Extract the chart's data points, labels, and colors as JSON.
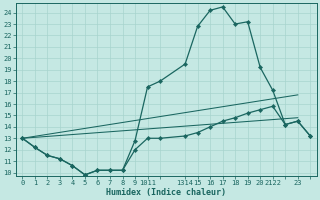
{
  "bg_color": "#c5e8e3",
  "grid_color": "#a8d4ce",
  "line_color": "#1a6660",
  "xlabel": "Humidex (Indice chaleur)",
  "ylim": [
    9.7,
    24.8
  ],
  "xlim": [
    -0.5,
    23.5
  ],
  "yticks": [
    10,
    11,
    12,
    13,
    14,
    15,
    16,
    17,
    18,
    19,
    20,
    21,
    22,
    23,
    24
  ],
  "curve1_x": [
    0,
    1,
    2,
    3,
    4,
    5,
    6,
    7,
    8,
    9,
    10,
    11,
    13,
    14,
    15,
    16,
    17,
    18,
    19,
    20,
    21,
    22,
    23
  ],
  "curve1_y": [
    13.0,
    12.2,
    11.5,
    11.2,
    10.6,
    9.8,
    10.2,
    10.2,
    10.2,
    12.8,
    17.5,
    18.0,
    19.5,
    22.8,
    24.2,
    24.5,
    23.0,
    23.2,
    19.2,
    17.2,
    14.2,
    14.5,
    13.2
  ],
  "curve2_x": [
    0,
    1,
    2,
    3,
    4,
    5,
    6,
    7,
    8,
    9,
    10,
    11,
    13,
    14,
    15,
    16,
    17,
    18,
    19,
    20,
    21,
    22,
    23
  ],
  "curve2_y": [
    13.0,
    12.2,
    11.5,
    11.2,
    10.6,
    9.8,
    10.2,
    10.2,
    10.2,
    12.0,
    13.0,
    13.0,
    13.2,
    13.5,
    14.0,
    14.5,
    14.8,
    15.2,
    15.5,
    15.8,
    14.2,
    14.5,
    13.2
  ],
  "line3_x": [
    0,
    22
  ],
  "line3_y": [
    13.0,
    16.8
  ],
  "line4_x": [
    0,
    22
  ],
  "line4_y": [
    13.0,
    14.8
  ],
  "xt_pos": [
    0,
    1,
    2,
    3,
    4,
    5,
    6,
    7,
    8,
    9,
    10,
    11,
    13,
    14,
    15,
    16,
    17,
    18,
    19,
    20,
    21,
    22,
    23
  ],
  "xt_lab": [
    "0",
    "1",
    "2",
    "3",
    "4",
    "5",
    "6",
    "7",
    "8",
    "9",
    "1011",
    "",
    "1314",
    "15",
    "16",
    "17",
    "18",
    "19",
    "20",
    "2122",
    "",
    "23",
    ""
  ]
}
